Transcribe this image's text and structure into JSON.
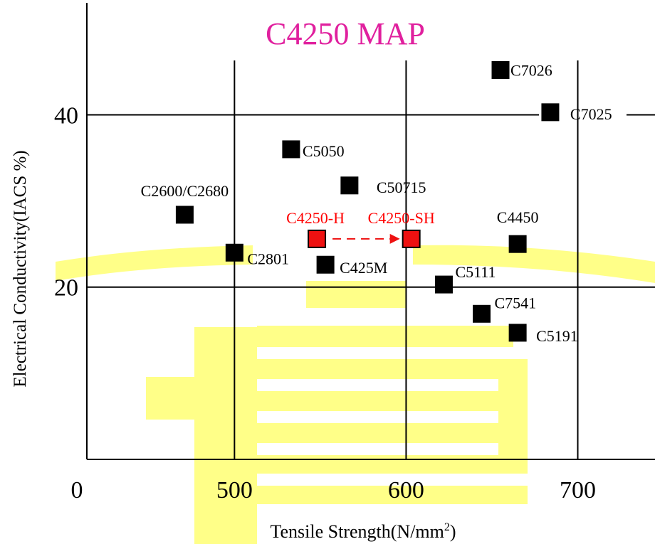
{
  "chart_data": {
    "type": "scatter",
    "title": "C4250 MAP",
    "xlabel": "Tensile Strength(N/mm",
    "xlabel_sup": "2",
    "xlabel_close": ")",
    "ylabel": "Electrical Conductivity(IACS %)",
    "origin_label": "0",
    "xlim": [
      414,
      745
    ],
    "ylim": [
      0.0,
      53.0
    ],
    "x_ticks": [
      500,
      600,
      700
    ],
    "y_ticks": [
      20,
      40
    ],
    "grid": true,
    "colors": {
      "title": "#e0209e",
      "marker": "#000000",
      "highlight_fill": "#ee1111",
      "highlight_text": "#ff0000",
      "watermark": "#ffff88",
      "text": "#000000",
      "axis": "#000000"
    },
    "points": [
      {
        "label": "C7026",
        "x": 655,
        "y": 45.2,
        "highlight": false
      },
      {
        "label": "C7025",
        "x": 684,
        "y": 40.3,
        "highlight": false
      },
      {
        "label": "C5050",
        "x": 533,
        "y": 36.0,
        "highlight": false
      },
      {
        "label": "C50715",
        "x": 567,
        "y": 31.8,
        "highlight": false
      },
      {
        "label": "C2600/C2680",
        "x": 471,
        "y": 28.4,
        "highlight": false
      },
      {
        "label": "C4250-H",
        "x": 548,
        "y": 25.6,
        "highlight": true
      },
      {
        "label": "C4250-SH",
        "x": 603,
        "y": 25.6,
        "highlight": true
      },
      {
        "label": "C4450",
        "x": 665,
        "y": 25.0,
        "highlight": false
      },
      {
        "label": "C2801",
        "x": 500,
        "y": 24.0,
        "highlight": false
      },
      {
        "label": "C425M",
        "x": 553,
        "y": 22.6,
        "highlight": false
      },
      {
        "label": "C5111",
        "x": 622,
        "y": 20.3,
        "highlight": false
      },
      {
        "label": "C7541",
        "x": 644,
        "y": 16.9,
        "highlight": false
      },
      {
        "label": "C5191",
        "x": 665,
        "y": 14.7,
        "highlight": false
      }
    ],
    "arrow": {
      "from": "C4250-H",
      "to": "C4250-SH"
    }
  }
}
